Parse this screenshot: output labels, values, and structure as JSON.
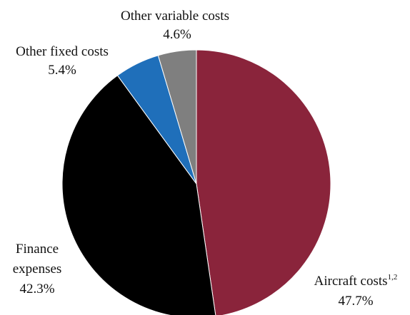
{
  "chart_data": {
    "type": "pie",
    "title": "",
    "slices": [
      {
        "label": "Aircraft costs",
        "superscript": "1,2",
        "value_text": "47.7%",
        "value": 47.7,
        "color": "#8a243b"
      },
      {
        "label": "Finance expenses",
        "label_lines": [
          "Finance",
          "expenses"
        ],
        "value_text": "42.3%",
        "value": 42.3,
        "color": "#000000"
      },
      {
        "label": "Other fixed costs",
        "value_text": "5.4%",
        "value": 5.4,
        "color": "#1f6fba"
      },
      {
        "label": "Other variable costs",
        "value_text": "4.6%",
        "value": 4.6,
        "color": "#7f7f7f"
      }
    ],
    "start_angle": "12 o'clock",
    "direction": "clockwise",
    "legend": "none"
  }
}
